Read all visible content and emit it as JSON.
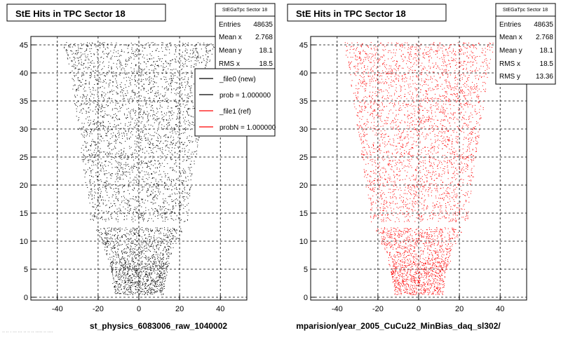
{
  "canvas": {
    "footer_text": "·· ·· · ··· ··· ·· ·· ·· ····· ·· ····"
  },
  "chart_data": [
    {
      "type": "scatter",
      "title": "StE Hits in TPC Sector 18",
      "xlabel": "st_physics_6083006_raw_1040002",
      "ylabel": "",
      "xlim": [
        -53,
        53
      ],
      "ylim": [
        -0.5,
        46.5
      ],
      "xticks": [
        -40,
        -20,
        0,
        20,
        40
      ],
      "yticks": [
        0,
        5,
        10,
        15,
        20,
        25,
        30,
        35,
        40,
        45
      ],
      "grid": true,
      "marker_color": "#000000",
      "stats": {
        "name": "StEGaTpc Sector 18",
        "rows": [
          {
            "label": "Entries",
            "value": "48635"
          },
          {
            "label": "Mean x",
            "value": "2.768"
          },
          {
            "label": "Mean y",
            "value": "18.1"
          },
          {
            "label": "RMS x",
            "value": "18.5"
          }
        ]
      },
      "legend": {
        "placement": "top-right",
        "entries": [
          {
            "label": "_file0 (new)",
            "color": "#000000"
          },
          {
            "label": "prob = 1.000000",
            "color": "#000000"
          },
          {
            "label": "_file1 (ref)",
            "color": "#ff0000"
          },
          {
            "label": "probN = 1.000000",
            "color": "#ff0000"
          }
        ]
      },
      "distribution": {
        "row_range": [
          1,
          45
        ],
        "gap_rows": [
          13
        ],
        "entries_plotted": 48635,
        "half_width_by_row": [
          [
            1,
            12
          ],
          [
            5,
            14
          ],
          [
            9,
            17
          ],
          [
            12,
            21
          ],
          [
            14,
            24
          ],
          [
            20,
            26
          ],
          [
            30,
            30
          ],
          [
            40,
            34
          ],
          [
            45,
            37
          ]
        ]
      }
    },
    {
      "type": "scatter",
      "title": "StE Hits in TPC Sector 18",
      "xlabel": "mparision/year_2005_CuCu22_MinBias_daq_sl302/",
      "ylabel": "",
      "xlim": [
        -53,
        53
      ],
      "ylim": [
        -0.5,
        46.5
      ],
      "xticks": [
        -40,
        -20,
        0,
        20,
        40
      ],
      "yticks": [
        0,
        5,
        10,
        15,
        20,
        25,
        30,
        35,
        40,
        45
      ],
      "grid": true,
      "marker_color": "#ff0000",
      "stats": {
        "name": "StEGaTpc Sector 18",
        "rows": [
          {
            "label": "Entries",
            "value": "48635"
          },
          {
            "label": "Mean x",
            "value": "2.768"
          },
          {
            "label": "Mean y",
            "value": "18.1"
          },
          {
            "label": "RMS x",
            "value": "18.5"
          },
          {
            "label": "RMS y",
            "value": "13.36"
          }
        ]
      },
      "distribution": {
        "row_range": [
          1,
          45
        ],
        "gap_rows": [
          13
        ],
        "entries_plotted": 48635,
        "half_width_by_row": [
          [
            1,
            12
          ],
          [
            5,
            14
          ],
          [
            9,
            17
          ],
          [
            12,
            21
          ],
          [
            14,
            24
          ],
          [
            20,
            26
          ],
          [
            30,
            30
          ],
          [
            40,
            34
          ],
          [
            45,
            37
          ]
        ]
      }
    }
  ]
}
